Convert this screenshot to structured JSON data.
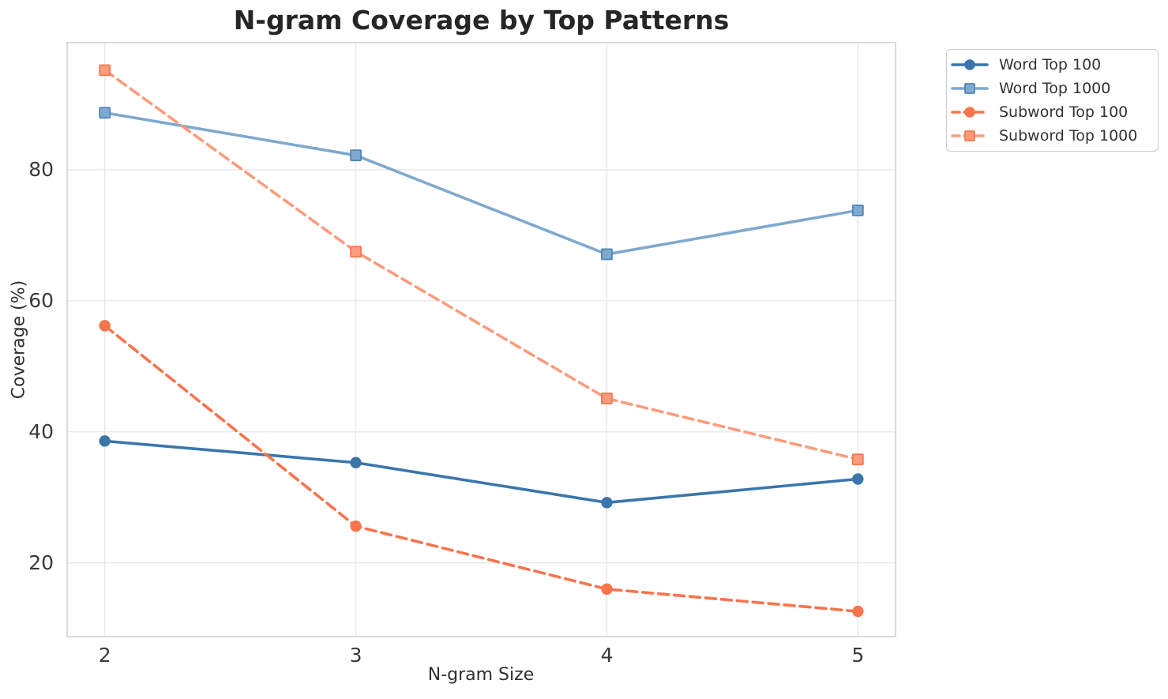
{
  "chart_data": {
    "type": "line",
    "title": "N-gram Coverage by Top Patterns",
    "xlabel": "N-gram Size",
    "ylabel": "Coverage (%)",
    "x": [
      2,
      3,
      4,
      5
    ],
    "x_tick_labels": [
      "2",
      "3",
      "4",
      "5"
    ],
    "y_ticks": [
      20,
      40,
      60,
      80
    ],
    "y_tick_labels": [
      "20",
      "40",
      "60",
      "80"
    ],
    "xlim": [
      1.85,
      5.15
    ],
    "ylim": [
      8.75,
      99.4
    ],
    "grid": true,
    "legend_position": "outside-upper-right",
    "series": [
      {
        "name": "Word Top 100",
        "values": [
          38.6,
          35.3,
          29.2,
          32.8
        ],
        "color": "#3a76ab",
        "line_style": "solid",
        "marker": "circle"
      },
      {
        "name": "Word Top 1000",
        "values": [
          88.7,
          82.2,
          67.1,
          73.8
        ],
        "color": "#7fa9ce",
        "marker_edge": "#4f86b5",
        "line_style": "solid",
        "marker": "square"
      },
      {
        "name": "Subword Top 100",
        "values": [
          56.2,
          25.6,
          16.0,
          12.6
        ],
        "color": "#f8744c",
        "line_style": "dashed",
        "marker": "circle"
      },
      {
        "name": "Subword Top 1000",
        "values": [
          95.2,
          67.5,
          45.1,
          35.8
        ],
        "color": "#fb9c7c",
        "marker_edge": "#f8774f",
        "line_style": "dashed",
        "marker": "square"
      }
    ],
    "colors": {
      "background": "#ffffff",
      "grid": "#e7e7e7",
      "spine": "#cdcdcd",
      "tick_text": "#3a3a3a",
      "title_text": "#262626",
      "legend_border": "#cbcbcb",
      "legend_text": "#333333"
    }
  }
}
